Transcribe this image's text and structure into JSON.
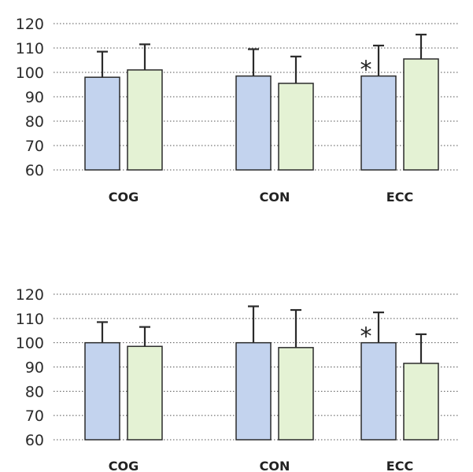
{
  "chart_data": [
    {
      "type": "bar",
      "title": "",
      "xlabel": "",
      "ylabel": "",
      "ylim": [
        60,
        120
      ],
      "yticks": [
        "60",
        "70",
        "80",
        "90",
        "100",
        "110",
        "120"
      ],
      "grid": true,
      "categories": [
        "COG",
        "CON",
        "ECC"
      ],
      "series": [
        {
          "color": "#c3d3ee",
          "values": [
            98,
            98.5,
            98.5
          ],
          "errors": [
            10.5,
            11,
            12.5
          ]
        },
        {
          "color": "#e4f2d4",
          "values": [
            101,
            95.5,
            105.5
          ],
          "errors": [
            10.5,
            11,
            10
          ]
        }
      ],
      "annotations": [
        {
          "text": "*",
          "category": "ECC",
          "series": 0
        }
      ]
    },
    {
      "type": "bar",
      "title": "",
      "xlabel": "",
      "ylabel": "",
      "ylim": [
        60,
        120
      ],
      "yticks": [
        "60",
        "70",
        "80",
        "90",
        "100",
        "110",
        "120"
      ],
      "grid": true,
      "categories": [
        "COG",
        "CON",
        "ECC"
      ],
      "series": [
        {
          "color": "#c3d3ee",
          "values": [
            100,
            100,
            100
          ],
          "errors": [
            8.5,
            15,
            12.5
          ]
        },
        {
          "color": "#e4f2d4",
          "values": [
            98.5,
            98,
            91.5
          ],
          "errors": [
            8,
            15.5,
            12
          ]
        }
      ],
      "annotations": [
        {
          "text": "*",
          "category": "ECC",
          "series": 0
        }
      ]
    }
  ]
}
